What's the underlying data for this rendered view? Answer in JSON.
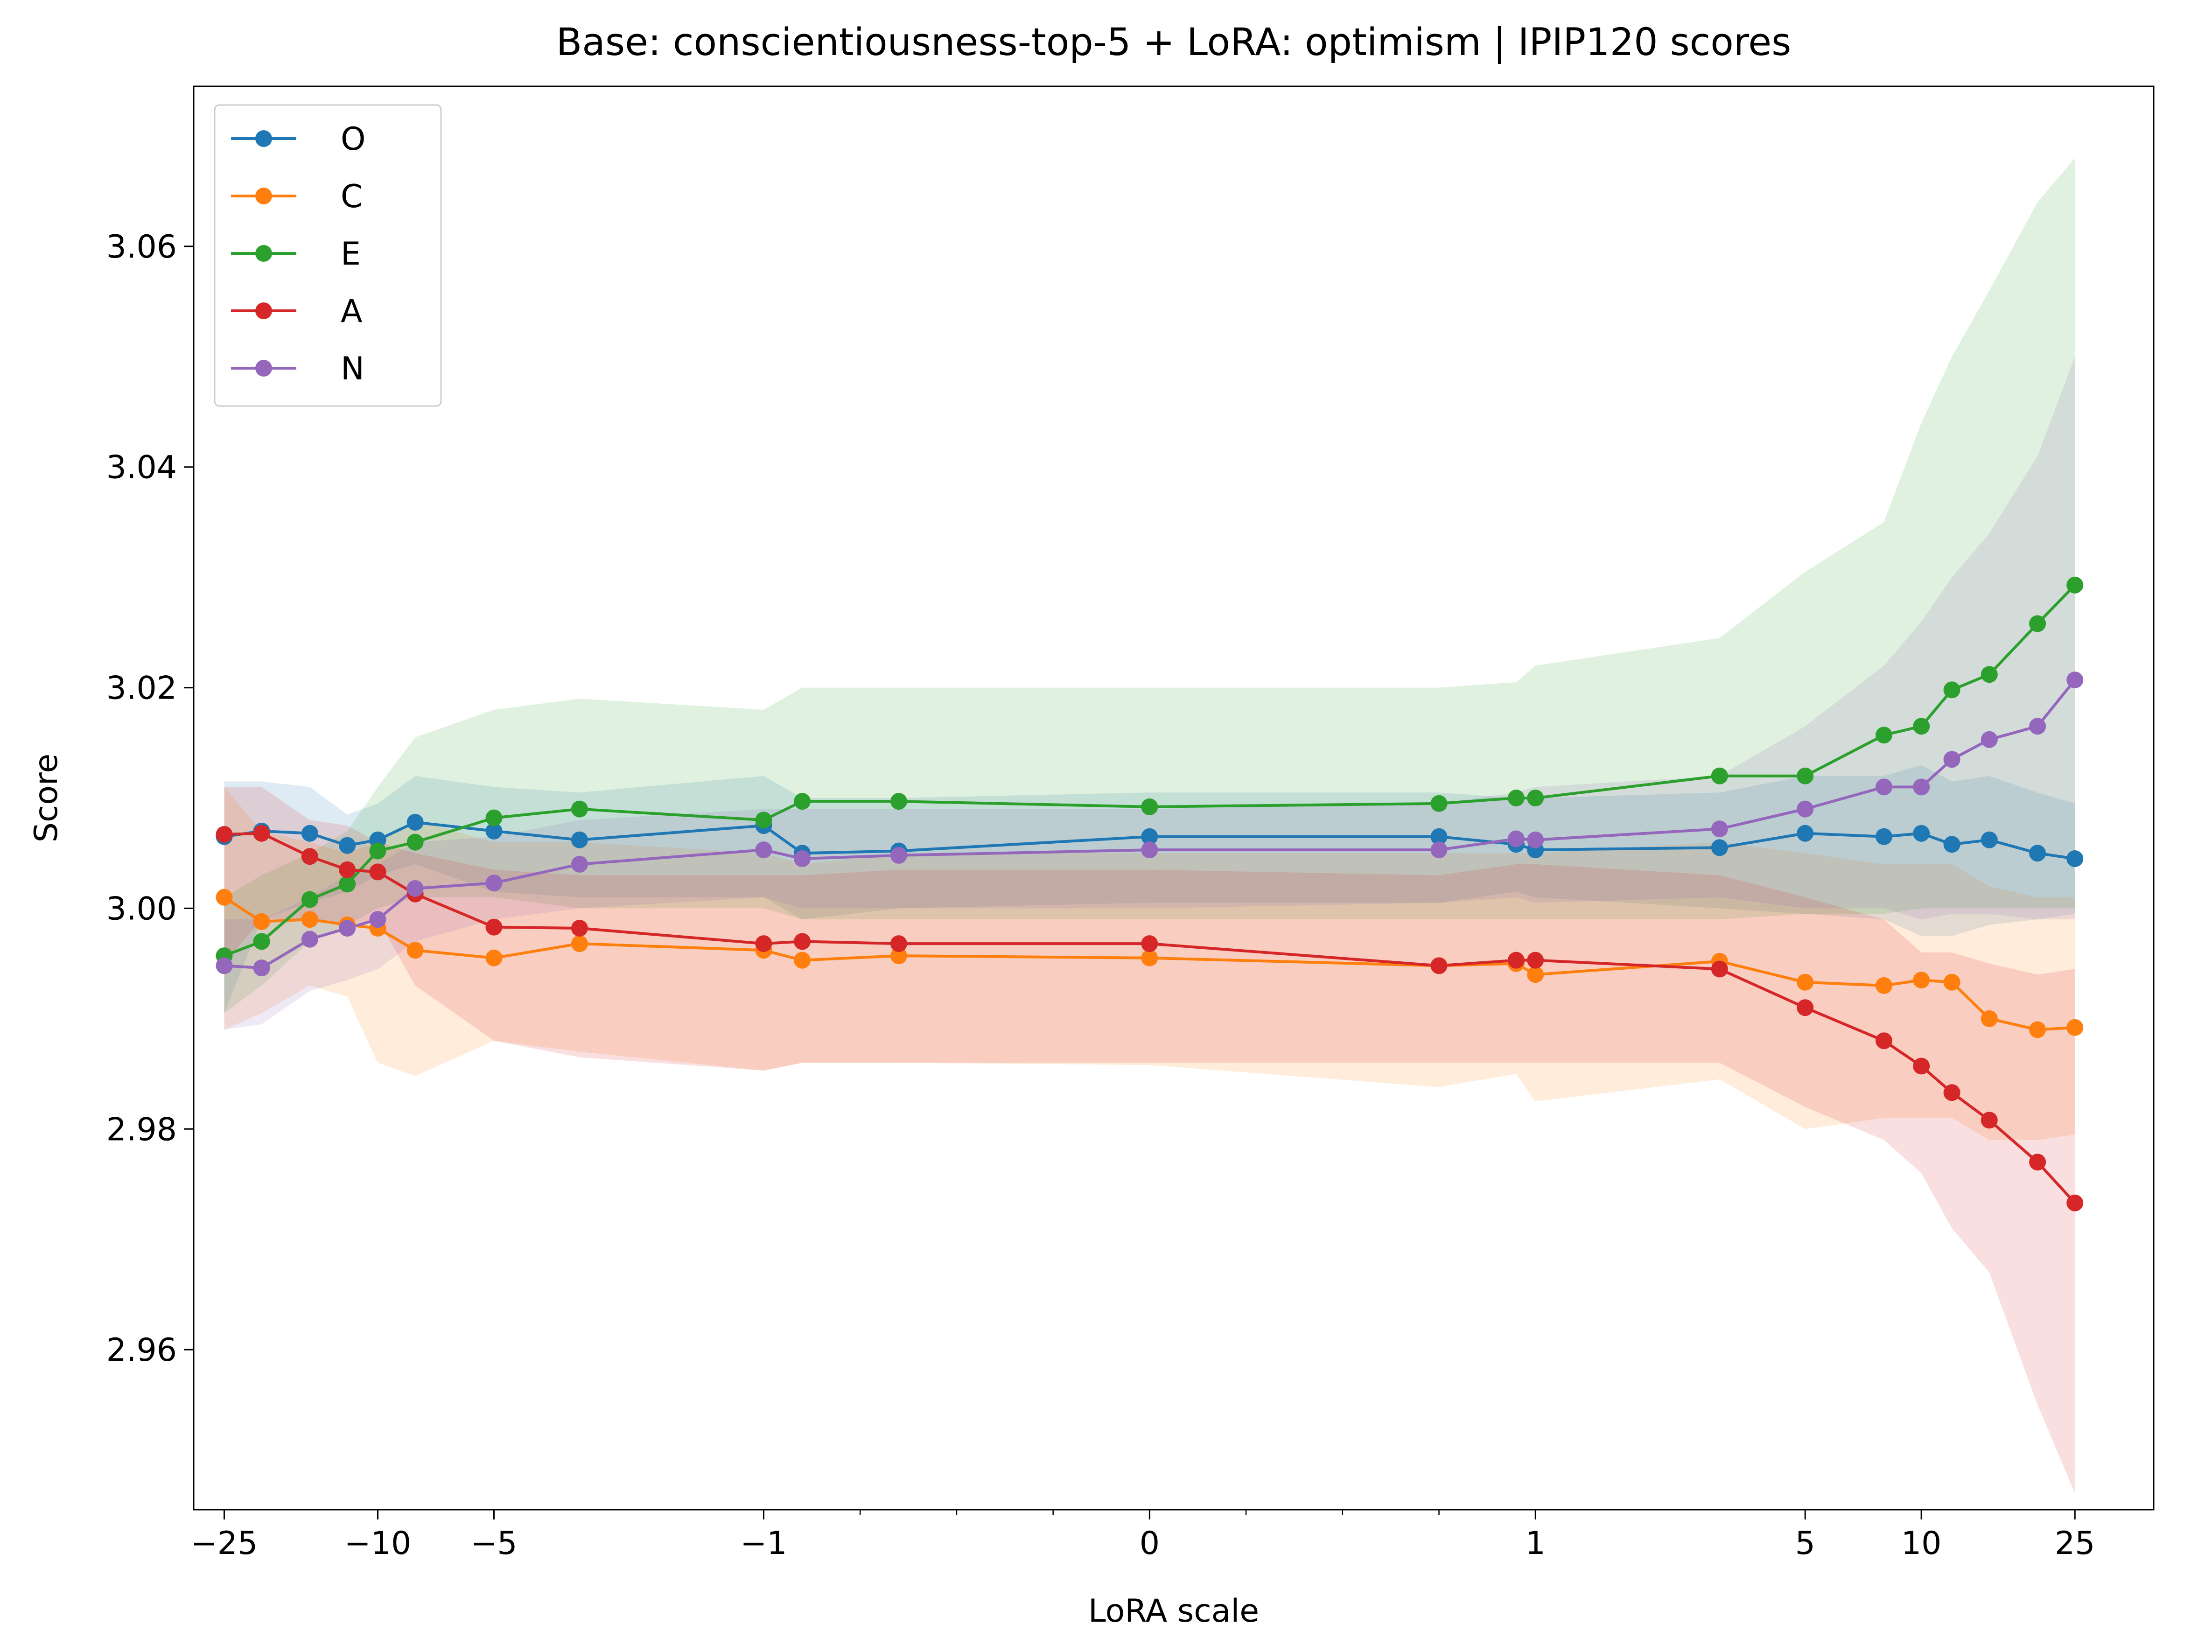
{
  "chart_data": {
    "type": "line",
    "title": "Base: conscientiousness-top-5 + LoRA: optimism | IPIP120 scores",
    "xlabel": "LoRA scale",
    "ylabel": "Score",
    "x_scale": "symlog",
    "x_linthresh": 1,
    "xlim": [
      -30,
      40
    ],
    "ylim": [
      2.9455,
      3.0745
    ],
    "x_ticks": [
      {
        "value": -25,
        "label": "−25"
      },
      {
        "value": -10,
        "label": "−10"
      },
      {
        "value": -5,
        "label": "−5"
      },
      {
        "value": -1,
        "label": "−1"
      },
      {
        "value": 0,
        "label": "0"
      },
      {
        "value": 1,
        "label": "1"
      },
      {
        "value": 5,
        "label": "5"
      },
      {
        "value": 10,
        "label": "10"
      },
      {
        "value": 25,
        "label": "25"
      }
    ],
    "x_minor_ticks": [
      -0.75,
      -0.5,
      -0.25,
      0.25,
      0.5,
      0.75
    ],
    "y_ticks": [
      {
        "value": 2.96,
        "label": "2.96"
      },
      {
        "value": 2.98,
        "label": "2.98"
      },
      {
        "value": 3.0,
        "label": "3.00"
      },
      {
        "value": 3.02,
        "label": "3.02"
      },
      {
        "value": 3.04,
        "label": "3.04"
      },
      {
        "value": 3.06,
        "label": "3.06"
      }
    ],
    "grid": false,
    "legend_position": "upper-left",
    "x": [
      -25,
      -20,
      -15,
      -12,
      -10,
      -8,
      -5,
      -3,
      -1,
      -0.9,
      -0.65,
      0,
      0.75,
      0.95,
      1,
      3,
      5,
      8,
      10,
      12,
      15,
      20,
      25
    ],
    "series": [
      {
        "name": "O",
        "color": "#1f77b4",
        "values": [
          3.0065,
          3.007,
          3.0068,
          3.0057,
          3.0062,
          3.0078,
          3.007,
          3.0062,
          3.0075,
          3.005,
          3.0052,
          3.0065,
          3.0065,
          3.0058,
          3.0053,
          3.0055,
          3.0068,
          3.0065,
          3.0068,
          3.0058,
          3.0062,
          3.005,
          3.0045
        ],
        "lower": [
          2.9905,
          2.999,
          3.0005,
          3.0015,
          3.003,
          3.004,
          3.0015,
          3.001,
          3.001,
          2.999,
          3.0,
          3.0005,
          3.0005,
          3.0015,
          3.001,
          3.0,
          2.9995,
          2.999,
          2.9975,
          2.9975,
          2.9985,
          2.999,
          2.9995
        ],
        "upper": [
          3.0115,
          3.0115,
          3.011,
          3.0085,
          3.0095,
          3.012,
          3.011,
          3.0105,
          3.012,
          3.01,
          3.01,
          3.0105,
          3.0105,
          3.01,
          3.01,
          3.0105,
          3.012,
          3.012,
          3.013,
          3.0115,
          3.012,
          3.0105,
          3.0095
        ]
      },
      {
        "name": "C",
        "color": "#ff7f0e",
        "values": [
          3.001,
          2.9988,
          2.999,
          2.9985,
          2.9982,
          2.9962,
          2.9955,
          2.9968,
          2.9962,
          2.9953,
          2.9957,
          2.9955,
          2.9948,
          2.995,
          2.994,
          2.9952,
          2.9933,
          2.993,
          2.9935,
          2.9933,
          2.99,
          2.989,
          2.9892
        ],
        "lower": [
          2.989,
          2.9905,
          2.993,
          2.992,
          2.986,
          2.9848,
          2.988,
          2.987,
          2.9853,
          2.986,
          2.986,
          2.9858,
          2.9838,
          2.985,
          2.9825,
          2.9845,
          2.98,
          2.981,
          2.981,
          2.981,
          2.979,
          2.979,
          2.9795
        ],
        "upper": [
          3.011,
          3.007,
          3.006,
          3.005,
          3.006,
          3.008,
          3.006,
          3.006,
          3.005,
          3.004,
          3.005,
          3.005,
          3.005,
          3.005,
          3.005,
          3.006,
          3.005,
          3.004,
          3.004,
          3.004,
          3.002,
          3.001,
          3.001
        ]
      },
      {
        "name": "E",
        "color": "#2ca02c",
        "values": [
          2.9957,
          2.997,
          3.0008,
          3.0022,
          3.0052,
          3.006,
          3.0082,
          3.009,
          3.008,
          3.0097,
          3.0097,
          3.0092,
          3.0095,
          3.01,
          3.01,
          3.012,
          3.012,
          3.0157,
          3.0165,
          3.0198,
          3.0212,
          3.0258,
          3.0293
        ],
        "lower": [
          2.9905,
          2.993,
          2.997,
          2.9985,
          3.0,
          3.001,
          3.001,
          3.0,
          3.0,
          2.999,
          2.999,
          2.999,
          2.999,
          2.999,
          2.999,
          2.999,
          2.9995,
          2.9995,
          3.0,
          3.0,
          3.0,
          3.0,
          3.0
        ],
        "upper": [
          3.001,
          3.003,
          3.005,
          3.007,
          3.011,
          3.0155,
          3.018,
          3.019,
          3.018,
          3.02,
          3.02,
          3.02,
          3.02,
          3.0205,
          3.022,
          3.0245,
          3.0305,
          3.035,
          3.044,
          3.05,
          3.056,
          3.064,
          3.068
        ]
      },
      {
        "name": "A",
        "color": "#d62728",
        "values": [
          3.0067,
          3.0068,
          3.0047,
          3.0035,
          3.0033,
          3.0013,
          2.9983,
          2.9982,
          2.9968,
          2.997,
          2.9968,
          2.9968,
          2.9948,
          2.9953,
          2.9953,
          2.9945,
          2.991,
          2.988,
          2.9857,
          2.9833,
          2.9808,
          2.977,
          2.9733
        ],
        "lower": [
          2.995,
          2.999,
          2.999,
          2.9985,
          2.999,
          2.993,
          2.988,
          2.9865,
          2.9853,
          2.986,
          2.986,
          2.986,
          2.986,
          2.986,
          2.986,
          2.986,
          2.982,
          2.979,
          2.976,
          2.971,
          2.967,
          2.955,
          2.947
        ],
        "upper": [
          3.011,
          3.011,
          3.008,
          3.0075,
          3.006,
          3.005,
          3.0035,
          3.003,
          3.003,
          3.003,
          3.0035,
          3.0035,
          3.003,
          3.004,
          3.004,
          3.003,
          3.001,
          2.999,
          2.996,
          2.996,
          2.995,
          2.994,
          2.9945
        ]
      },
      {
        "name": "N",
        "color": "#9467bd",
        "values": [
          2.9948,
          2.9946,
          2.9972,
          2.9982,
          2.999,
          3.0018,
          3.0023,
          3.004,
          3.0053,
          3.0045,
          3.0048,
          3.0053,
          3.0053,
          3.0063,
          3.0062,
          3.0072,
          3.009,
          3.011,
          3.011,
          3.0135,
          3.0153,
          3.0165,
          3.0207
        ],
        "lower": [
          2.989,
          2.9895,
          2.9925,
          2.9935,
          2.9945,
          2.997,
          2.999,
          3.0,
          3.001,
          3.0,
          3.0,
          3.0,
          3.0005,
          3.001,
          3.0005,
          3.001,
          3.0,
          3.0,
          2.999,
          2.9995,
          2.9995,
          2.999,
          2.999
        ],
        "upper": [
          2.999,
          2.999,
          3.001,
          3.003,
          3.004,
          3.006,
          3.0065,
          3.008,
          3.009,
          3.009,
          3.009,
          3.009,
          3.0095,
          3.0105,
          3.011,
          3.012,
          3.0165,
          3.022,
          3.026,
          3.03,
          3.034,
          3.041,
          3.05
        ]
      }
    ]
  }
}
